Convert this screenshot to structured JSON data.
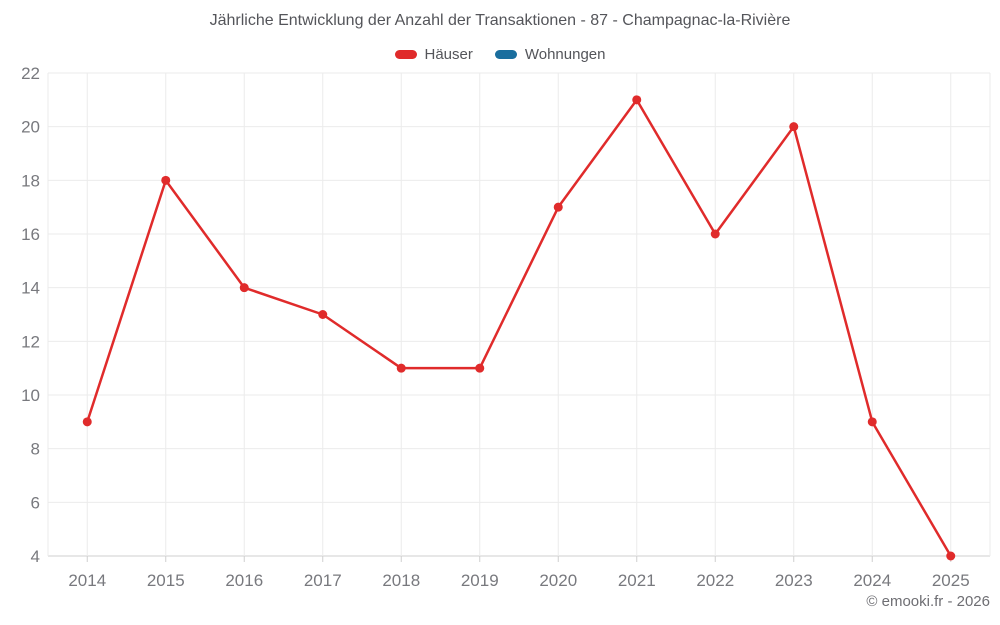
{
  "title": "Jährliche Entwicklung der Anzahl der Transaktionen - 87 - Champagnac-la-Rivière",
  "footer": "© emooki.fr - 2026",
  "chart_data": {
    "type": "line",
    "title": "Jährliche Entwicklung der Anzahl der Transaktionen - 87 - Champagnac-la-Rivière",
    "categories": [
      "2014",
      "2015",
      "2016",
      "2017",
      "2018",
      "2019",
      "2020",
      "2021",
      "2022",
      "2023",
      "2024",
      "2025"
    ],
    "series": [
      {
        "name": "Häuser",
        "color": "#e02b2b",
        "values": [
          9,
          18,
          14,
          13,
          11,
          11,
          17,
          21,
          16,
          20,
          9,
          4
        ]
      },
      {
        "name": "Wohnungen",
        "color": "#1a6e9e",
        "values": []
      }
    ],
    "xlabel": "",
    "ylabel": "",
    "ylim": [
      4,
      22
    ],
    "ytick_step": 2,
    "grid": true,
    "legend_position": "top"
  },
  "style": {
    "background": "#ffffff",
    "grid_color": "#ebebeb",
    "axis_color": "#cfcfcf",
    "tick_label_color": "#78797e",
    "title_color": "#54555a",
    "footer_color": "#6e6e73",
    "marker_radius": 4.5,
    "line_width": 2.5
  }
}
